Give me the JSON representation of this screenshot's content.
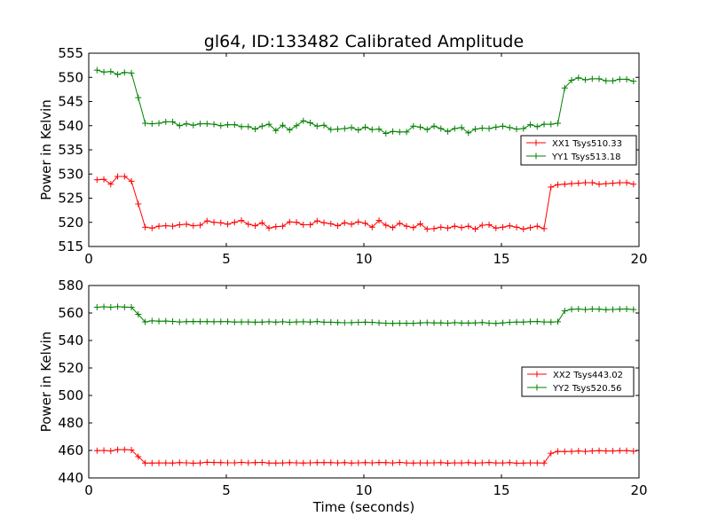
{
  "chart_data": [
    {
      "type": "line",
      "title": "gl64, ID:133482 Calibrated Amplitude",
      "xlabel": "",
      "ylabel": "Power in Kelvin",
      "xlim": [
        0,
        20
      ],
      "ylim": [
        515,
        555
      ],
      "xticks": [
        0,
        5,
        10,
        15,
        20
      ],
      "yticks": [
        515,
        520,
        525,
        530,
        535,
        540,
        545,
        550,
        555
      ],
      "legend_position": "center-right",
      "grid": false,
      "x": [
        0.3,
        0.55,
        0.8,
        1.05,
        1.3,
        1.55,
        1.8,
        2.05,
        2.3,
        2.55,
        2.8,
        3.05,
        3.3,
        3.55,
        3.8,
        4.05,
        4.3,
        4.55,
        4.8,
        5.05,
        5.3,
        5.55,
        5.8,
        6.05,
        6.3,
        6.55,
        6.8,
        7.05,
        7.3,
        7.55,
        7.8,
        8.05,
        8.3,
        8.55,
        8.8,
        9.05,
        9.3,
        9.55,
        9.8,
        10.05,
        10.3,
        10.55,
        10.8,
        11.05,
        11.3,
        11.55,
        11.8,
        12.05,
        12.3,
        12.55,
        12.8,
        13.05,
        13.3,
        13.55,
        13.8,
        14.05,
        14.3,
        14.55,
        14.8,
        15.05,
        15.3,
        15.55,
        15.8,
        16.05,
        16.3,
        16.55,
        16.8,
        17.05,
        17.3,
        17.55,
        17.8,
        18.05,
        18.3,
        18.55,
        18.8,
        19.05,
        19.3,
        19.55,
        19.8
      ],
      "series": [
        {
          "name": "XX1 Tsys510.33",
          "color": "#ff0000",
          "values": [
            528.8,
            528.9,
            527.9,
            529.5,
            529.5,
            528.5,
            523.8,
            519.0,
            518.8,
            519.2,
            519.3,
            519.2,
            519.5,
            519.6,
            519.3,
            519.4,
            520.3,
            520.0,
            519.9,
            519.6,
            520.0,
            520.4,
            519.6,
            519.3,
            519.9,
            518.8,
            519.1,
            519.2,
            520.1,
            520.0,
            519.5,
            519.5,
            520.3,
            519.9,
            519.7,
            519.3,
            519.9,
            519.6,
            520.1,
            519.8,
            519.0,
            520.4,
            519.4,
            518.9,
            519.8,
            519.2,
            518.9,
            519.7,
            518.6,
            518.7,
            519.0,
            518.8,
            519.2,
            518.9,
            519.2,
            518.6,
            519.4,
            519.5,
            518.8,
            519.0,
            519.3,
            519.0,
            518.6,
            518.9,
            519.2,
            518.7,
            527.3,
            527.8,
            527.9,
            528.0,
            528.1,
            528.2,
            528.2,
            527.9,
            528.0,
            528.1,
            528.2,
            528.2,
            527.9
          ]
        },
        {
          "name": "YY1 Tsys513.18",
          "color": "#008000",
          "values": [
            551.5,
            551.1,
            551.2,
            550.6,
            551.0,
            550.9,
            545.8,
            540.5,
            540.4,
            540.5,
            540.8,
            540.8,
            540.0,
            540.4,
            540.1,
            540.4,
            540.4,
            540.3,
            540.0,
            540.2,
            540.2,
            539.8,
            539.8,
            539.3,
            539.9,
            540.3,
            539.0,
            540.1,
            539.1,
            540.0,
            541.0,
            540.6,
            539.9,
            540.1,
            539.2,
            539.3,
            539.4,
            539.6,
            539.1,
            539.7,
            539.2,
            539.3,
            538.4,
            538.8,
            538.7,
            538.7,
            539.9,
            539.7,
            539.2,
            539.9,
            539.4,
            538.8,
            539.4,
            539.6,
            538.5,
            539.3,
            539.5,
            539.4,
            539.7,
            539.9,
            539.6,
            539.3,
            539.4,
            540.2,
            539.8,
            540.3,
            540.3,
            540.5,
            547.8,
            549.4,
            549.9,
            549.5,
            549.7,
            549.7,
            549.3,
            549.3,
            549.6,
            549.6,
            549.2
          ]
        }
      ]
    },
    {
      "type": "line",
      "title": "",
      "xlabel": "Time (seconds)",
      "ylabel": "Power in Kelvin",
      "xlim": [
        0,
        20
      ],
      "ylim": [
        440,
        580
      ],
      "xticks": [
        0,
        5,
        10,
        15,
        20
      ],
      "yticks": [
        440,
        460,
        480,
        500,
        520,
        540,
        560,
        580
      ],
      "legend_position": "center-right",
      "grid": false,
      "x": [
        0.3,
        0.55,
        0.8,
        1.05,
        1.3,
        1.55,
        1.8,
        2.05,
        2.3,
        2.55,
        2.8,
        3.05,
        3.3,
        3.55,
        3.8,
        4.05,
        4.3,
        4.55,
        4.8,
        5.05,
        5.3,
        5.55,
        5.8,
        6.05,
        6.3,
        6.55,
        6.8,
        7.05,
        7.3,
        7.55,
        7.8,
        8.05,
        8.3,
        8.55,
        8.8,
        9.05,
        9.3,
        9.55,
        9.8,
        10.05,
        10.3,
        10.55,
        10.8,
        11.05,
        11.3,
        11.55,
        11.8,
        12.05,
        12.3,
        12.55,
        12.8,
        13.05,
        13.3,
        13.55,
        13.8,
        14.05,
        14.3,
        14.55,
        14.8,
        15.05,
        15.3,
        15.55,
        15.8,
        16.05,
        16.3,
        16.55,
        16.8,
        17.05,
        17.3,
        17.55,
        17.8,
        18.05,
        18.3,
        18.55,
        18.8,
        19.05,
        19.3,
        19.55,
        19.8
      ],
      "series": [
        {
          "name": "XX2 Tsys443.02",
          "color": "#ff0000",
          "values": [
            459.8,
            460.0,
            459.6,
            460.6,
            460.6,
            460.3,
            455.5,
            450.8,
            450.8,
            450.9,
            450.9,
            450.8,
            451.1,
            451.0,
            450.7,
            450.9,
            451.4,
            451.2,
            451.1,
            451.0,
            451.0,
            451.3,
            451.0,
            451.1,
            451.3,
            450.8,
            450.8,
            450.9,
            451.1,
            451.0,
            450.8,
            451.0,
            451.1,
            451.1,
            451.1,
            450.9,
            451.1,
            450.8,
            451.0,
            451.1,
            451.0,
            451.2,
            451.1,
            450.9,
            451.3,
            450.9,
            450.8,
            451.0,
            450.9,
            451.0,
            451.1,
            450.7,
            451.0,
            450.9,
            451.1,
            450.8,
            451.0,
            451.2,
            450.9,
            450.9,
            451.1,
            450.7,
            450.8,
            451.0,
            450.9,
            450.8,
            457.9,
            459.3,
            459.2,
            459.3,
            459.6,
            459.3,
            459.6,
            459.8,
            459.6,
            459.6,
            459.8,
            459.8,
            459.4
          ]
        },
        {
          "name": "YY2 Tsys520.56",
          "color": "#008000",
          "values": [
            564.2,
            564.5,
            564.2,
            564.6,
            564.3,
            564.2,
            559.0,
            553.5,
            554.3,
            554.0,
            554.1,
            553.9,
            553.5,
            553.7,
            553.8,
            553.7,
            553.7,
            553.6,
            553.7,
            553.7,
            553.4,
            553.5,
            553.5,
            553.3,
            553.4,
            553.6,
            553.3,
            553.6,
            553.2,
            553.5,
            553.6,
            553.4,
            553.8,
            553.3,
            553.3,
            553.1,
            552.9,
            553.0,
            553.2,
            553.3,
            553.2,
            552.8,
            552.6,
            552.4,
            552.6,
            552.5,
            552.5,
            552.8,
            553.0,
            552.8,
            552.8,
            552.6,
            553.0,
            552.7,
            552.7,
            552.8,
            553.1,
            552.6,
            552.4,
            552.8,
            553.2,
            553.4,
            553.4,
            553.7,
            553.8,
            553.5,
            553.4,
            553.6,
            561.5,
            562.7,
            562.9,
            562.5,
            562.9,
            562.8,
            562.4,
            562.6,
            562.8,
            562.9,
            562.5
          ]
        }
      ]
    }
  ]
}
